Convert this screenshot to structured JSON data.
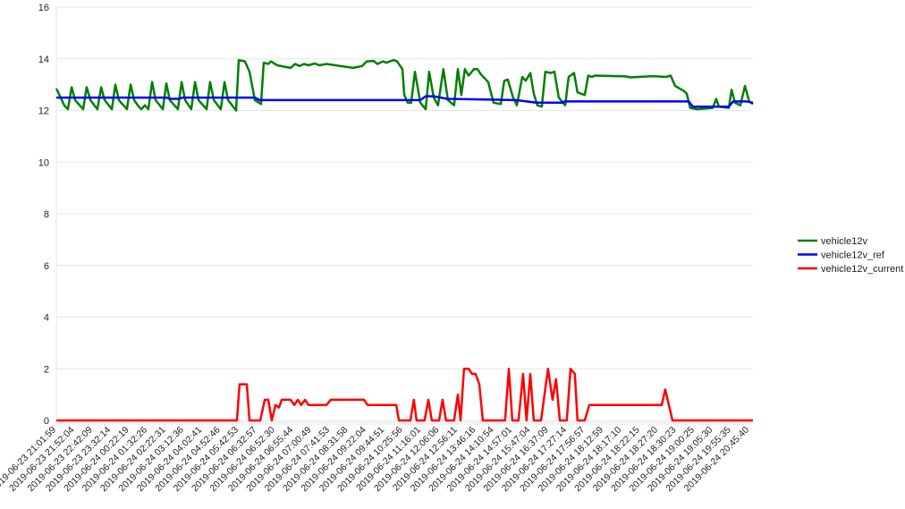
{
  "chart_data": {
    "type": "line",
    "title": "",
    "xlabel": "",
    "ylabel": "",
    "ylim": [
      0,
      16
    ],
    "yticks": [
      0,
      2,
      4,
      6,
      8,
      10,
      12,
      14,
      16
    ],
    "grid": true,
    "legend_position": "right",
    "x_unit": "sample index",
    "xlim": [
      0,
      259.7
    ],
    "x_tick_labels": [
      "2019-06-23 21:01:59",
      "2019-06-23 21:52:04",
      "2019-06-23 22:42:09",
      "2019-06-23 23:32:14",
      "2019-06-24 00:22:19",
      "2019-06-24 01:32:26",
      "2019-06-24 02:22:31",
      "2019-06-24 03:12:36",
      "2019-06-24 04:02:41",
      "2019-06-24 04:52:46",
      "2019-06-24 05:42:53",
      "2019-06-24 06:32:57",
      "2019-06-24 06:52:30",
      "2019-06-24 06:55:44",
      "2019-06-24 07:00:49",
      "2019-06-24 07:41:53",
      "2019-06-24 08:31:58",
      "2019-06-24 09:22:04",
      "2019-06-24 09:44:51",
      "2019-06-24 10:25:56",
      "2019-06-24 11:16:01",
      "2019-06-24 12:06:06",
      "2019-06-24 12:56:11",
      "2019-06-24 13:46:16",
      "2019-06-24 14:10:54",
      "2019-06-24 14:57:01",
      "2019-06-24 15:47:04",
      "2019-06-24 16:37:09",
      "2019-06-24 17:27:14",
      "2019-06-24 17:56:57",
      "2019-06-24 18:12:59",
      "2019-06-24 18:17:10",
      "2019-06-24 18:22:15",
      "2019-06-24 18:27:20",
      "2019-06-24 18:30:23",
      "2019-06-24 19:00:25",
      "2019-06-24 19:05:30",
      "2019-06-24 19:55:35",
      "2019-06-24 20:45:40"
    ],
    "series": [
      {
        "name": "vehicle12v",
        "color": "#008000",
        "points": [
          [
            0,
            12.85
          ],
          [
            3,
            12.19
          ],
          [
            4.3,
            12.05
          ],
          [
            5.7,
            12.9
          ],
          [
            7,
            12.4
          ],
          [
            10,
            12.05
          ],
          [
            11.3,
            12.9
          ],
          [
            12.7,
            12.4
          ],
          [
            15.3,
            12.05
          ],
          [
            16.7,
            12.9
          ],
          [
            18,
            12.4
          ],
          [
            20.7,
            12.05
          ],
          [
            22,
            13.0
          ],
          [
            23.3,
            12.4
          ],
          [
            26.3,
            12.05
          ],
          [
            27.7,
            13.0
          ],
          [
            29,
            12.4
          ],
          [
            30.7,
            12.15
          ],
          [
            31.7,
            12.05
          ],
          [
            33,
            12.2
          ],
          [
            34.3,
            12.05
          ],
          [
            35.7,
            13.1
          ],
          [
            37,
            12.4
          ],
          [
            39.7,
            12.05
          ],
          [
            41,
            13.05
          ],
          [
            42.3,
            12.4
          ],
          [
            45.3,
            12.05
          ],
          [
            46.7,
            13.1
          ],
          [
            48,
            12.4
          ],
          [
            50.3,
            12.05
          ],
          [
            51.7,
            13.1
          ],
          [
            53,
            12.4
          ],
          [
            56,
            12.05
          ],
          [
            57.3,
            13.1
          ],
          [
            58.7,
            12.4
          ],
          [
            61.3,
            12.05
          ],
          [
            62.7,
            13.1
          ],
          [
            64,
            12.4
          ],
          [
            67,
            12.0
          ],
          [
            68,
            13.95
          ],
          [
            70.3,
            13.9
          ],
          [
            72,
            13.5
          ],
          [
            74,
            12.4
          ],
          [
            76.3,
            12.25
          ],
          [
            77.3,
            13.85
          ],
          [
            79,
            13.8
          ],
          [
            80,
            13.9
          ],
          [
            82.3,
            13.75
          ],
          [
            87.3,
            13.65
          ],
          [
            89,
            13.8
          ],
          [
            90.7,
            13.72
          ],
          [
            92.3,
            13.8
          ],
          [
            94,
            13.75
          ],
          [
            96.3,
            13.82
          ],
          [
            98,
            13.75
          ],
          [
            100.7,
            13.8
          ],
          [
            110.7,
            13.65
          ],
          [
            114,
            13.72
          ],
          [
            115.7,
            13.9
          ],
          [
            118.3,
            13.92
          ],
          [
            119.7,
            13.8
          ],
          [
            121.7,
            13.9
          ],
          [
            123,
            13.85
          ],
          [
            125.7,
            13.95
          ],
          [
            127,
            13.9
          ],
          [
            129,
            13.6
          ],
          [
            129.7,
            12.6
          ],
          [
            131,
            12.3
          ],
          [
            132.3,
            12.3
          ],
          [
            133.7,
            13.5
          ],
          [
            135.7,
            12.3
          ],
          [
            137.7,
            12.05
          ],
          [
            139,
            13.5
          ],
          [
            140.7,
            12.5
          ],
          [
            142.3,
            12.2
          ],
          [
            144.3,
            13.6
          ],
          [
            146,
            12.4
          ],
          [
            148.3,
            12.2
          ],
          [
            149.7,
            13.6
          ],
          [
            151,
            12.6
          ],
          [
            152.3,
            13.6
          ],
          [
            153.7,
            13.35
          ],
          [
            155.7,
            13.6
          ],
          [
            157,
            13.6
          ],
          [
            158.3,
            13.4
          ],
          [
            161,
            13.1
          ],
          [
            163,
            12.3
          ],
          [
            165.7,
            12.25
          ],
          [
            167,
            13.15
          ],
          [
            168.3,
            13.2
          ],
          [
            170.3,
            12.5
          ],
          [
            171.7,
            12.2
          ],
          [
            173.7,
            13.3
          ],
          [
            175,
            13.15
          ],
          [
            176.7,
            13.45
          ],
          [
            178,
            12.65
          ],
          [
            179.3,
            12.2
          ],
          [
            181,
            12.15
          ],
          [
            182.3,
            13.5
          ],
          [
            184.3,
            13.45
          ],
          [
            185.7,
            13.5
          ],
          [
            187.3,
            12.5
          ],
          [
            189.7,
            12.2
          ],
          [
            191,
            13.3
          ],
          [
            193,
            13.45
          ],
          [
            194.3,
            12.7
          ],
          [
            197,
            12.6
          ],
          [
            198.3,
            13.35
          ],
          [
            199.7,
            13.3
          ],
          [
            200.7,
            13.35
          ],
          [
            212.3,
            13.32
          ],
          [
            214,
            13.28
          ],
          [
            222.3,
            13.33
          ],
          [
            227.3,
            13.3
          ],
          [
            229,
            13.35
          ],
          [
            230.7,
            12.95
          ],
          [
            234,
            12.75
          ],
          [
            235,
            12.65
          ],
          [
            236.3,
            12.1
          ],
          [
            239,
            12.05
          ],
          [
            244.7,
            12.1
          ],
          [
            246,
            12.45
          ],
          [
            247,
            12.15
          ],
          [
            250.7,
            12.1
          ],
          [
            251.7,
            12.8
          ],
          [
            253,
            12.3
          ],
          [
            255,
            12.2
          ],
          [
            256.7,
            12.95
          ],
          [
            258.3,
            12.35
          ],
          [
            259.7,
            12.25
          ]
        ]
      },
      {
        "name": "vehicle12v_ref",
        "color": "#0000ff",
        "points": [
          [
            0,
            12.5
          ],
          [
            41,
            12.5
          ],
          [
            42.3,
            12.45
          ],
          [
            45.7,
            12.45
          ],
          [
            47,
            12.5
          ],
          [
            74,
            12.5
          ],
          [
            75.7,
            12.4
          ],
          [
            135.7,
            12.4
          ],
          [
            137.7,
            12.55
          ],
          [
            140.7,
            12.55
          ],
          [
            145.7,
            12.45
          ],
          [
            171.3,
            12.4
          ],
          [
            179,
            12.3
          ],
          [
            188.3,
            12.3
          ],
          [
            189.7,
            12.35
          ],
          [
            235.7,
            12.35
          ],
          [
            237.3,
            12.15
          ],
          [
            250.7,
            12.15
          ],
          [
            252.3,
            12.35
          ],
          [
            257.3,
            12.35
          ],
          [
            259.7,
            12.3
          ]
        ]
      },
      {
        "name": "vehicle12v_current",
        "color": "#ff0000",
        "points": [
          [
            0,
            0
          ],
          [
            67.3,
            0
          ],
          [
            68.3,
            1.4
          ],
          [
            71,
            1.4
          ],
          [
            72,
            0
          ],
          [
            76,
            0
          ],
          [
            77.7,
            0.8
          ],
          [
            79,
            0.8
          ],
          [
            80.3,
            0
          ],
          [
            81.7,
            0.6
          ],
          [
            83,
            0.5
          ],
          [
            84,
            0.8
          ],
          [
            87.3,
            0.8
          ],
          [
            88.7,
            0.6
          ],
          [
            90,
            0.8
          ],
          [
            91.3,
            0.6
          ],
          [
            92.7,
            0.8
          ],
          [
            94,
            0.6
          ],
          [
            100.7,
            0.6
          ],
          [
            102.3,
            0.8
          ],
          [
            114.7,
            0.8
          ],
          [
            116,
            0.6
          ],
          [
            126.7,
            0.6
          ],
          [
            127.7,
            0
          ],
          [
            132,
            0
          ],
          [
            133.3,
            0.8
          ],
          [
            134.3,
            0
          ],
          [
            137.3,
            0
          ],
          [
            138.7,
            0.8
          ],
          [
            140,
            0
          ],
          [
            142.7,
            0
          ],
          [
            144,
            0.8
          ],
          [
            145.3,
            0
          ],
          [
            148.3,
            0
          ],
          [
            149.7,
            1.0
          ],
          [
            150.7,
            0
          ],
          [
            152,
            2.0
          ],
          [
            153.7,
            2.0
          ],
          [
            155,
            1.8
          ],
          [
            156.3,
            1.8
          ],
          [
            157.7,
            1.4
          ],
          [
            159,
            0
          ],
          [
            167.3,
            0
          ],
          [
            168.7,
            2.0
          ],
          [
            170,
            0
          ],
          [
            172.3,
            0
          ],
          [
            174,
            1.8
          ],
          [
            175.3,
            0
          ],
          [
            176.7,
            1.8
          ],
          [
            178,
            0
          ],
          [
            180.7,
            0
          ],
          [
            182,
            1.0
          ],
          [
            183.3,
            2.0
          ],
          [
            185,
            0.8
          ],
          [
            186.3,
            1.6
          ],
          [
            187.7,
            0
          ],
          [
            190.3,
            0
          ],
          [
            191.7,
            2.0
          ],
          [
            193.3,
            1.8
          ],
          [
            194.3,
            0
          ],
          [
            197,
            0
          ],
          [
            198.7,
            0.6
          ],
          [
            225.7,
            0.6
          ],
          [
            227,
            1.2
          ],
          [
            229.7,
            0
          ],
          [
            259.7,
            0
          ]
        ]
      }
    ]
  }
}
